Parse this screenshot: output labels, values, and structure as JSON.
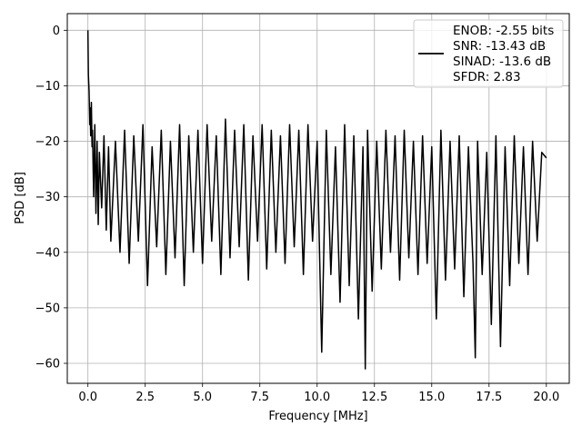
{
  "chart_data": {
    "type": "line",
    "title": "",
    "xlabel": "Frequency [MHz]",
    "ylabel": "PSD [dB]",
    "xlim": [
      -0.9,
      21.0
    ],
    "ylim": [
      -63.6,
      3.0
    ],
    "xticks": [
      0.0,
      2.5,
      5.0,
      7.5,
      10.0,
      12.5,
      15.0,
      17.5,
      20.0
    ],
    "xtick_labels": [
      "0.0",
      "2.5",
      "5.0",
      "7.5",
      "10.0",
      "12.5",
      "15.0",
      "17.5",
      "20.0"
    ],
    "yticks": [
      0,
      -10,
      -20,
      -30,
      -40,
      -50,
      -60
    ],
    "ytick_labels": [
      "0",
      "−10",
      "−20",
      "−30",
      "−40",
      "−50",
      "−60"
    ],
    "grid": true,
    "legend_position": "top-right",
    "series": [
      {
        "color": "#000000",
        "legend": [
          "ENOB: -2.55 bits",
          "SNR: -13.43 dB",
          "SINAD: -13.6 dB",
          "SFDR: 2.83"
        ],
        "x": [
          0.0,
          0.02,
          0.05,
          0.08,
          0.1,
          0.12,
          0.15,
          0.18,
          0.2,
          0.25,
          0.3,
          0.35,
          0.4,
          0.45,
          0.5,
          0.6,
          0.7,
          0.8,
          0.9,
          1.0,
          1.2,
          1.4,
          1.6,
          1.8,
          2.0,
          2.2,
          2.4,
          2.6,
          2.8,
          3.0,
          3.2,
          3.4,
          3.6,
          3.8,
          4.0,
          4.2,
          4.4,
          4.6,
          4.8,
          5.0,
          5.2,
          5.4,
          5.6,
          5.8,
          6.0,
          6.2,
          6.4,
          6.6,
          6.8,
          7.0,
          7.2,
          7.4,
          7.6,
          7.8,
          8.0,
          8.2,
          8.4,
          8.6,
          8.8,
          9.0,
          9.2,
          9.4,
          9.6,
          9.8,
          10.0,
          10.2,
          10.4,
          10.6,
          10.8,
          11.0,
          11.2,
          11.4,
          11.6,
          11.8,
          12.0,
          12.1,
          12.2,
          12.4,
          12.6,
          12.8,
          13.0,
          13.2,
          13.4,
          13.6,
          13.8,
          14.0,
          14.2,
          14.4,
          14.6,
          14.8,
          15.0,
          15.2,
          15.4,
          15.6,
          15.8,
          16.0,
          16.2,
          16.4,
          16.6,
          16.8,
          16.9,
          17.0,
          17.2,
          17.4,
          17.6,
          17.8,
          18.0,
          18.2,
          18.4,
          18.6,
          18.8,
          19.0,
          19.2,
          19.4,
          19.6,
          19.8,
          20.0
        ],
        "y": [
          0.0,
          -8.0,
          -11.0,
          -17.0,
          -14.0,
          -19.0,
          -13.0,
          -21.0,
          -18.0,
          -30.0,
          -17.0,
          -33.0,
          -20.0,
          -35.0,
          -22.0,
          -32.0,
          -19.0,
          -36.0,
          -21.0,
          -38.0,
          -20.0,
          -40.0,
          -18.0,
          -42.0,
          -19.0,
          -38.0,
          -17.0,
          -46.0,
          -21.0,
          -39.0,
          -18.0,
          -44.0,
          -20.0,
          -41.0,
          -17.0,
          -46.0,
          -19.0,
          -40.0,
          -18.0,
          -42.0,
          -17.0,
          -38.0,
          -19.0,
          -44.0,
          -16.0,
          -41.0,
          -18.0,
          -39.0,
          -17.0,
          -45.0,
          -19.0,
          -38.0,
          -17.0,
          -43.0,
          -18.0,
          -40.0,
          -19.0,
          -42.0,
          -17.0,
          -39.0,
          -18.0,
          -44.0,
          -17.0,
          -38.0,
          -20.0,
          -58.0,
          -18.0,
          -44.0,
          -21.0,
          -49.0,
          -17.0,
          -46.0,
          -19.0,
          -52.0,
          -21.0,
          -61.0,
          -18.0,
          -47.0,
          -20.0,
          -43.0,
          -18.0,
          -40.0,
          -19.0,
          -45.0,
          -18.0,
          -41.0,
          -20.0,
          -44.0,
          -19.0,
          -42.0,
          -21.0,
          -52.0,
          -18.0,
          -45.0,
          -20.0,
          -43.0,
          -19.0,
          -48.0,
          -21.0,
          -42.0,
          -59.0,
          -20.0,
          -44.0,
          -22.0,
          -53.0,
          -19.0,
          -57.0,
          -21.0,
          -46.0,
          -19.0,
          -42.0,
          -21.0,
          -44.0,
          -20.0,
          -38.0,
          -22.0,
          -23.0
        ]
      }
    ]
  }
}
